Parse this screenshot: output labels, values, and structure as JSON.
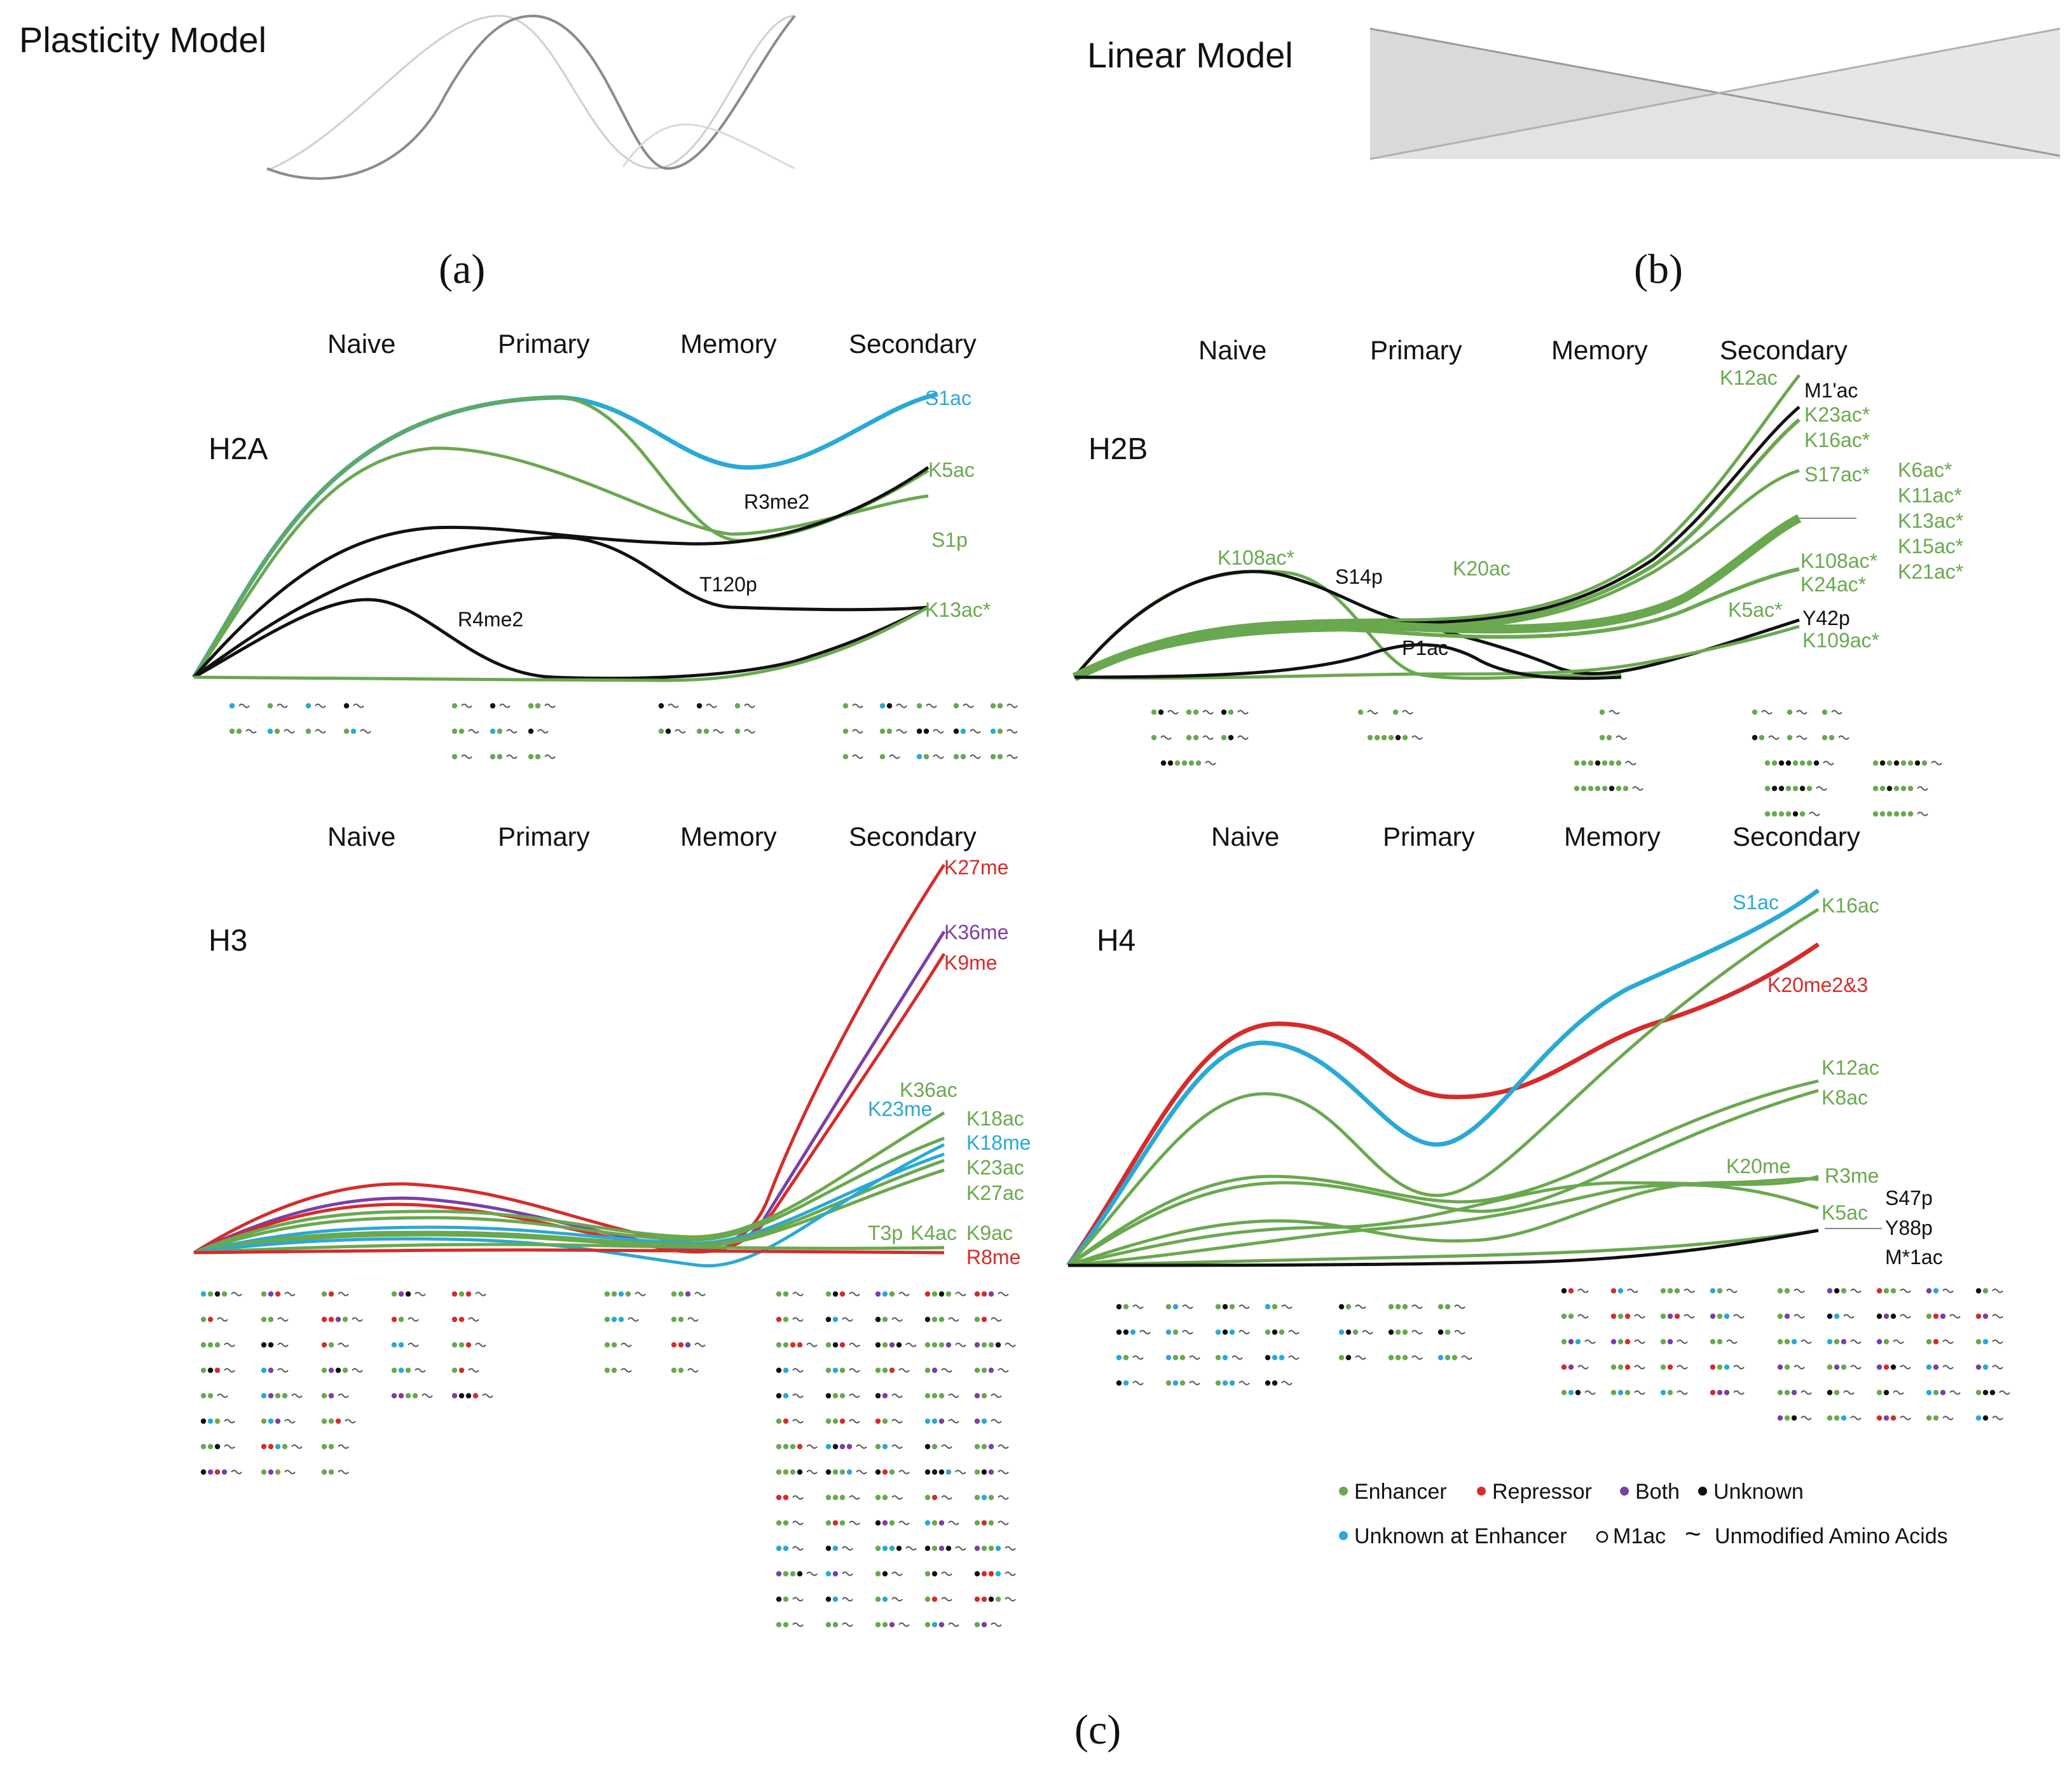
{
  "colors": {
    "enhancer": "#6aa84f",
    "repressor": "#d62b2b",
    "both": "#7b3fa6",
    "unknown": "#111111",
    "unknown_enhancer": "#29a9d6",
    "light_gray": "#c8c8c8",
    "mid_gray": "#8a8a8a",
    "fill_gray": "#d9d9d9"
  },
  "panel_a": {
    "title": "Plasticity Model",
    "label": "(a)"
  },
  "panel_b": {
    "title": "Linear Model",
    "label": "(b)"
  },
  "panel_c": {
    "label": "(c)"
  },
  "stages": [
    "Naive",
    "Primary",
    "Memory",
    "Secondary"
  ],
  "h2a": {
    "name": "H2A",
    "labels": [
      "S1ac",
      "K5ac",
      "R3me2",
      "S1p",
      "T120p",
      "R4me2",
      "K13ac*"
    ]
  },
  "h2b": {
    "name": "H2B",
    "labels": [
      "K12ac",
      "M1'ac",
      "K23ac*",
      "K16ac*",
      "S17ac*",
      "K6ac*",
      "K11ac*",
      "K13ac*",
      "K15ac*",
      "K21ac*",
      "K108ac*",
      "K24ac*",
      "K5ac*",
      "Y42p",
      "K109ac*",
      "K108ac*",
      "S14p",
      "K20ac",
      "P1ac"
    ]
  },
  "h3": {
    "name": "H3",
    "labels": [
      "K27me",
      "K36me",
      "K9me",
      "K36ac",
      "K23me",
      "K18ac",
      "K18me",
      "K23ac",
      "K27ac",
      "T3p",
      "K4ac",
      "K9ac",
      "R8me"
    ]
  },
  "h4": {
    "name": "H4",
    "labels": [
      "S1ac",
      "K16ac",
      "K20me2&3",
      "K12ac",
      "K8ac",
      "K20me",
      "R3me",
      "K5ac",
      "S47p",
      "Y88p",
      "M*1ac"
    ]
  },
  "legend": {
    "enhancer": "Enhancer",
    "repressor": "Repressor",
    "both": "Both",
    "unknown": "Unknown",
    "unknown_enhancer": "Unknown at Enhancer",
    "m1ac": "M1ac",
    "tilde": "~",
    "unmodified": "Unmodified Amino Acids"
  }
}
